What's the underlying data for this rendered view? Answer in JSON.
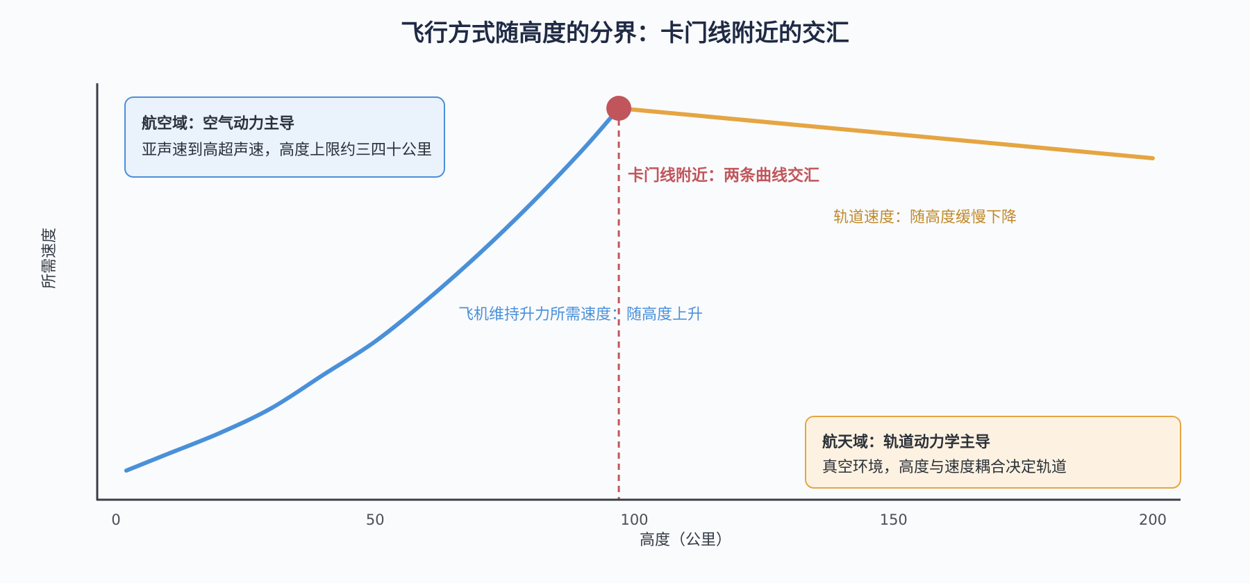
{
  "chart_data": {
    "type": "line",
    "title": "飞行方式随高度的分界：卡门线附近的交汇",
    "xlabel": "高度（公里）",
    "ylabel": "所需速度",
    "xlim": [
      0,
      200
    ],
    "x_ticks": [
      "0",
      "50",
      "100",
      "150",
      "200"
    ],
    "ylim": [
      0,
      100
    ],
    "y_ticks_shown": false,
    "grid": false,
    "legend": "none",
    "series": [
      {
        "key": "aircraft",
        "color": "#4a90d9",
        "x": [
          2,
          10,
          20,
          30,
          40,
          50,
          60,
          70,
          80,
          90,
          97
        ],
        "y": [
          7,
          11,
          16,
          22,
          30,
          38,
          48,
          59,
          71,
          84,
          94
        ]
      },
      {
        "key": "orbital",
        "color": "#e5a542",
        "x": [
          97,
          200
        ],
        "y": [
          94,
          82
        ]
      }
    ],
    "crossover": {
      "x": 97,
      "y": 94,
      "color": "#c0565b"
    },
    "annotations": {
      "crossover_label": "卡门线附近：两条曲线交汇",
      "orbital_label": "轨道速度：随高度缓慢下降",
      "aircraft_label": "飞机维持升力所需速度：随高度上升"
    },
    "boxes": {
      "aviation": {
        "title": "航空域：空气动力主导",
        "text": "亚声速到高超声速，高度上限约三四十公里",
        "border": "#4a90d9",
        "fill": "#eaf2fc"
      },
      "space": {
        "title": "航天域：轨道动力学主导",
        "text": "真空环境，高度与速度耦合决定轨道",
        "border": "#e5a542",
        "fill": "#fdf2e1"
      }
    }
  }
}
